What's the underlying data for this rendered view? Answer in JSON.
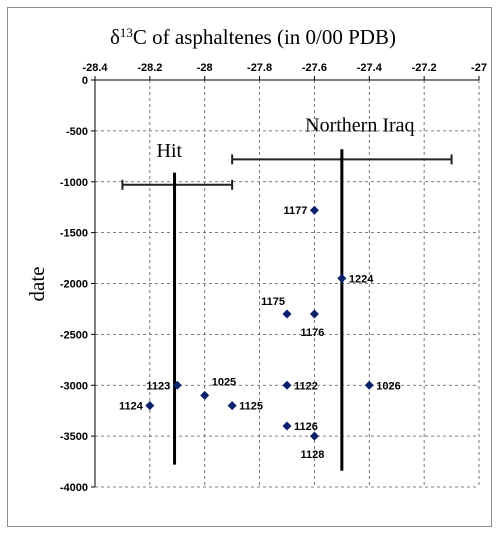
{
  "chart_data": {
    "type": "scatter",
    "title_main": "δ",
    "title_sup": "13",
    "title_rest": "C of asphaltenes  (in 0/00 PDB)",
    "ylabel": "date",
    "xlim": [
      -28.4,
      -27
    ],
    "ylim": [
      -4000,
      0
    ],
    "x_ticks": [
      -28.4,
      -28.2,
      -28,
      -27.8,
      -27.6,
      -27.4,
      -27.2,
      -27
    ],
    "x_tick_labels": [
      "-28.4",
      "-28.2",
      "-28",
      "-27.8",
      "-27.6",
      "-27.4",
      "-27.2",
      "-27"
    ],
    "y_ticks": [
      0,
      -500,
      -1000,
      -1500,
      -2000,
      -2500,
      -3000,
      -3500,
      -4000
    ],
    "y_tick_labels": [
      "0",
      "-500",
      "-1000",
      "-1500",
      "-2000",
      "-2500",
      "-3000",
      "-3500",
      "-4000"
    ],
    "x_axis_position": "top",
    "grid": true,
    "points": [
      {
        "label": "1177",
        "x": -27.6,
        "y": -1280,
        "label_pos": "left"
      },
      {
        "label": "1224",
        "x": -27.5,
        "y": -1950,
        "label_pos": "right"
      },
      {
        "label": "1175",
        "x": -27.7,
        "y": -2300,
        "label_pos": "above-left"
      },
      {
        "label": "1176",
        "x": -27.6,
        "y": -2300,
        "label_pos": "below"
      },
      {
        "label": "1123",
        "x": -28.1,
        "y": -3000,
        "label_pos": "left"
      },
      {
        "label": "1025",
        "x": -28.0,
        "y": -3100,
        "label_pos": "above-right"
      },
      {
        "label": "1122",
        "x": -27.7,
        "y": -3000,
        "label_pos": "right"
      },
      {
        "label": "1026",
        "x": -27.4,
        "y": -3000,
        "label_pos": "right"
      },
      {
        "label": "1124",
        "x": -28.2,
        "y": -3200,
        "label_pos": "left"
      },
      {
        "label": "1125",
        "x": -27.9,
        "y": -3200,
        "label_pos": "right"
      },
      {
        "label": "1126",
        "x": -27.7,
        "y": -3400,
        "label_pos": "right"
      },
      {
        "label": "1128",
        "x": -27.6,
        "y": -3500,
        "label_pos": "below"
      }
    ],
    "groups": [
      {
        "name": "Hit",
        "x_range": [
          -28.3,
          -27.9
        ],
        "range_y": -1030,
        "vline_x": -28.11,
        "vline_y": [
          -910,
          -3780
        ]
      },
      {
        "name": "Northern Iraq",
        "x_range": [
          -27.9,
          -27.1
        ],
        "range_y": -780,
        "vline_x": -27.5,
        "vline_y": [
          -680,
          -3840
        ]
      }
    ]
  }
}
